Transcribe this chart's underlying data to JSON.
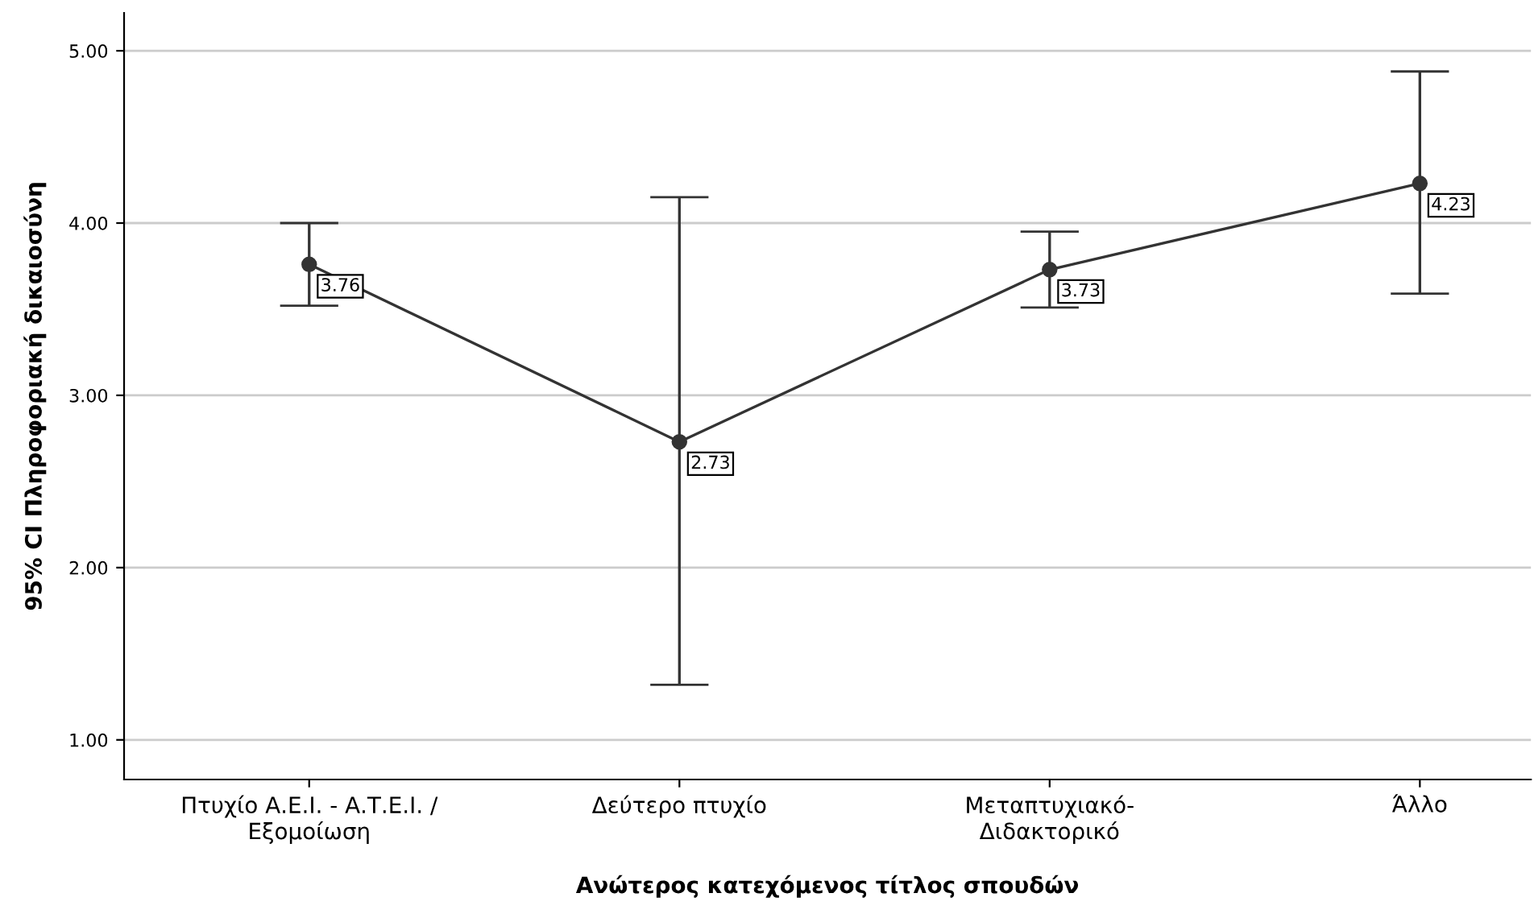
{
  "chart_data": {
    "type": "line",
    "xlabel": "Ανώτερος κατεχόμενος τίτλος σπουδών",
    "ylabel": "95% CI Πληροφοριακή δικαιοσύνη",
    "categories": [
      "Πτυχίο Α.Ε.Ι. - Α.Τ.Ε.Ι. /\nΕξομοίωση",
      "Δεύτερο πτυχίο",
      "Μεταπτυχιακό-\nΔιδακτορικό",
      "Άλλο"
    ],
    "series": [
      {
        "color": "#333333",
        "values": [
          3.76,
          2.73,
          3.73,
          4.23
        ],
        "errors": [
          [
            3.52,
            4.0
          ],
          [
            1.32,
            4.15
          ],
          [
            3.51,
            3.95
          ],
          [
            3.59,
            4.88
          ]
        ]
      }
    ],
    "data_labels": true,
    "marker": "circle",
    "line_style": "solid",
    "grid": "y",
    "legend": false,
    "ylim": [
      0.77,
      5.22
    ],
    "yticks": [
      {
        "value": 1,
        "label": "1.00"
      },
      {
        "value": 2,
        "label": "2.00"
      },
      {
        "value": 3,
        "label": "3.00"
      },
      {
        "value": 4,
        "label": "4.00"
      },
      {
        "value": 5,
        "label": "5.00"
      }
    ]
  }
}
